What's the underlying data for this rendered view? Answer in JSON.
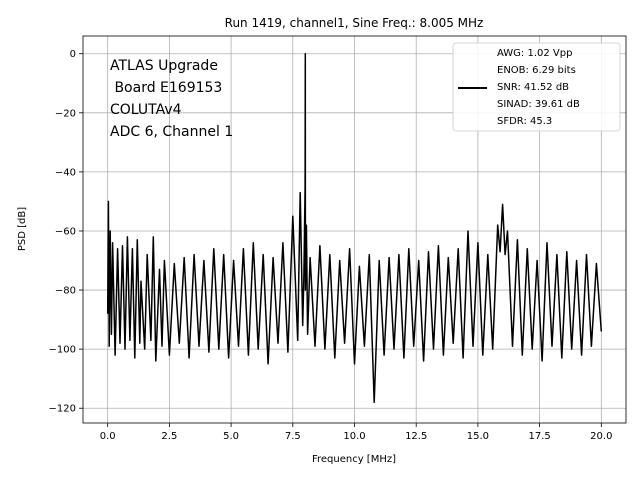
{
  "chart_data": {
    "type": "line",
    "title": "Run 1419, channel1, Sine Freq.: 8.005 MHz",
    "xlabel": "Frequency [MHz]",
    "ylabel": "PSD [dB]",
    "xlim": [
      -1,
      21
    ],
    "ylim": [
      -125,
      6
    ],
    "xticks": [
      0.0,
      2.5,
      5.0,
      7.5,
      10.0,
      12.5,
      15.0,
      17.5,
      20.0
    ],
    "xtick_labels": [
      "0.0",
      "2.5",
      "5.0",
      "7.5",
      "10.0",
      "12.5",
      "15.0",
      "17.5",
      "20.0"
    ],
    "yticks": [
      0,
      -20,
      -40,
      -60,
      -80,
      -100,
      -120
    ],
    "ytick_labels": [
      "0",
      "−20",
      "−40",
      "−60",
      "−80",
      "−100",
      "−120"
    ],
    "grid": true,
    "legend_position": "top-right",
    "annotation_lines": [
      "ATLAS Upgrade",
      " Board E169153",
      "COLUTAv4",
      "ADC 6, Channel 1"
    ],
    "legend_lines": [
      "AWG: 1.02 Vpp",
      "ENOB: 6.29 bits",
      "SNR: 41.52 dB",
      "SINAD: 39.61 dB",
      "SFDR: 45.3"
    ],
    "line_color": "#000000",
    "series": [
      {
        "x": [
          0.0,
          0.03,
          0.06,
          0.1,
          0.15,
          0.2,
          0.3,
          0.4,
          0.5,
          0.6,
          0.7,
          0.8,
          0.9,
          1.0,
          1.1,
          1.2,
          1.3,
          1.35,
          1.5,
          1.6,
          1.75,
          1.85,
          1.95,
          2.1,
          2.2,
          2.3,
          2.5,
          2.7,
          2.9,
          3.1,
          3.3,
          3.5,
          3.7,
          3.9,
          4.1,
          4.3,
          4.5,
          4.7,
          4.9,
          5.1,
          5.3,
          5.5,
          5.7,
          5.9,
          6.1,
          6.3,
          6.5,
          6.7,
          6.9,
          7.1,
          7.3,
          7.5,
          7.7,
          7.8,
          7.9,
          7.95,
          8.0,
          8.005,
          8.01,
          8.05,
          8.1,
          8.2,
          8.4,
          8.6,
          8.8,
          9.0,
          9.2,
          9.4,
          9.6,
          9.8,
          10.0,
          10.2,
          10.4,
          10.6,
          10.8,
          11.0,
          11.2,
          11.4,
          11.6,
          11.8,
          12.0,
          12.2,
          12.4,
          12.6,
          12.8,
          13.0,
          13.2,
          13.4,
          13.6,
          13.8,
          14.0,
          14.2,
          14.4,
          14.6,
          14.8,
          15.0,
          15.2,
          15.4,
          15.6,
          15.8,
          15.9,
          16.0,
          16.1,
          16.2,
          16.4,
          16.6,
          16.8,
          17.0,
          17.2,
          17.4,
          17.6,
          17.8,
          18.0,
          18.2,
          18.4,
          18.6,
          18.8,
          19.0,
          19.2,
          19.4,
          19.6,
          19.8,
          20.0
        ],
        "y": [
          -88,
          -50,
          -99,
          -60,
          -95,
          -64,
          -102,
          -66,
          -98,
          -65,
          -100,
          -62,
          -97,
          -66,
          -103,
          -63,
          -98,
          -77,
          -100,
          -68,
          -97,
          -62,
          -104,
          -73,
          -99,
          -70,
          -102,
          -71,
          -98,
          -69,
          -103,
          -68,
          -99,
          -70,
          -101,
          -66,
          -100,
          -68,
          -103,
          -70,
          -99,
          -66,
          -102,
          -64,
          -100,
          -68,
          -105,
          -69,
          -98,
          -64,
          -101,
          -55,
          -97,
          -47,
          -92,
          -75,
          -45,
          0,
          -80,
          -58,
          -95,
          -69,
          -99,
          -65,
          -100,
          -68,
          -103,
          -70,
          -98,
          -66,
          -105,
          -72,
          -99,
          -68,
          -118,
          -70,
          -102,
          -69,
          -100,
          -68,
          -103,
          -66,
          -99,
          -70,
          -104,
          -67,
          -100,
          -65,
          -102,
          -69,
          -98,
          -66,
          -103,
          -60,
          -99,
          -64,
          -102,
          -68,
          -100,
          -58,
          -67,
          -51,
          -68,
          -60,
          -99,
          -63,
          -102,
          -66,
          -100,
          -70,
          -104,
          -64,
          -99,
          -68,
          -103,
          -67,
          -100,
          -70,
          -102,
          -68,
          -99,
          -71,
          -94
        ]
      }
    ]
  }
}
